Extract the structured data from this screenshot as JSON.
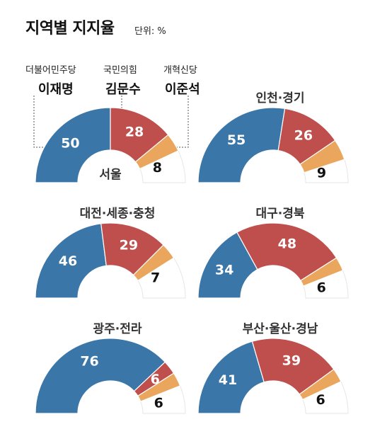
{
  "title": "지역별 지지율",
  "unit_label": "단위: %",
  "colors": {
    "democratic": "#3a76a8",
    "ppp": "#bf4f4c",
    "reform": "#e9a65c",
    "empty": "#ffffff",
    "divider": "#ffffff",
    "leader": "#555555"
  },
  "legend": [
    {
      "party": "더불어민주당",
      "candidate": "이재명"
    },
    {
      "party": "국민의힘",
      "candidate": "김문수"
    },
    {
      "party": "개혁신당",
      "candidate": "이준석"
    }
  ],
  "chart_data": [
    {
      "type": "pie",
      "region": "서울",
      "series": [
        "이재명",
        "김문수",
        "이준석"
      ],
      "values": [
        50,
        28,
        8
      ]
    },
    {
      "type": "pie",
      "region": "인천·경기",
      "series": [
        "이재명",
        "김문수",
        "이준석"
      ],
      "values": [
        55,
        26,
        9
      ]
    },
    {
      "type": "pie",
      "region": "대전·세종·충청",
      "series": [
        "이재명",
        "김문수",
        "이준석"
      ],
      "values": [
        46,
        29,
        7
      ]
    },
    {
      "type": "pie",
      "region": "대구·경북",
      "series": [
        "이재명",
        "김문수",
        "이준석"
      ],
      "values": [
        34,
        48,
        6
      ]
    },
    {
      "type": "pie",
      "region": "광주·전라",
      "series": [
        "이재명",
        "김문수",
        "이준석"
      ],
      "values": [
        76,
        6,
        6
      ]
    },
    {
      "type": "pie",
      "region": "부산·울산·경남",
      "series": [
        "이재명",
        "김문수",
        "이준석"
      ],
      "values": [
        41,
        39,
        6
      ]
    }
  ]
}
